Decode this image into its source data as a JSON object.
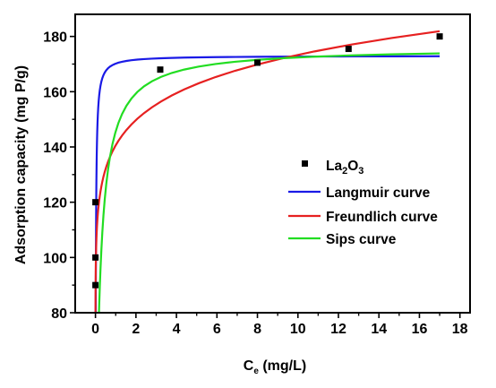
{
  "chart_data": {
    "type": "scatter",
    "xlabel": {
      "main": "C",
      "sub": "e",
      "rest": " (mg/L)"
    },
    "ylabel": "Adsorption capacity (mg P/g)",
    "xlim": [
      -1,
      18.5
    ],
    "ylim": [
      80,
      188
    ],
    "x_ticks": [
      0,
      2,
      4,
      6,
      8,
      10,
      12,
      14,
      16,
      18
    ],
    "y_ticks": [
      80,
      100,
      120,
      140,
      160,
      180
    ],
    "grid": false,
    "legend_position": "center-right",
    "points": {
      "name": {
        "main": "La",
        "sub1": "2",
        "mid": "O",
        "sub2": "3"
      },
      "color": "#000000",
      "x": [
        0.0,
        0.0,
        0.0,
        3.2,
        8.0,
        12.5,
        17.0
      ],
      "y": [
        90,
        100,
        120,
        168,
        170.5,
        175.5,
        180
      ]
    },
    "fits": [
      {
        "name": "Langmuir curve",
        "color": "#1a1ae6",
        "model": "langmuir",
        "qmax": 173,
        "K": 60
      },
      {
        "name": "Freundlich curve",
        "color": "#e62020",
        "model": "freundlich",
        "Kf": 140.6,
        "n": 11
      },
      {
        "name": "Sips curve",
        "color": "#22dd22",
        "model": "sips",
        "qmax": 176,
        "K": 4.8,
        "n": 1
      }
    ]
  }
}
